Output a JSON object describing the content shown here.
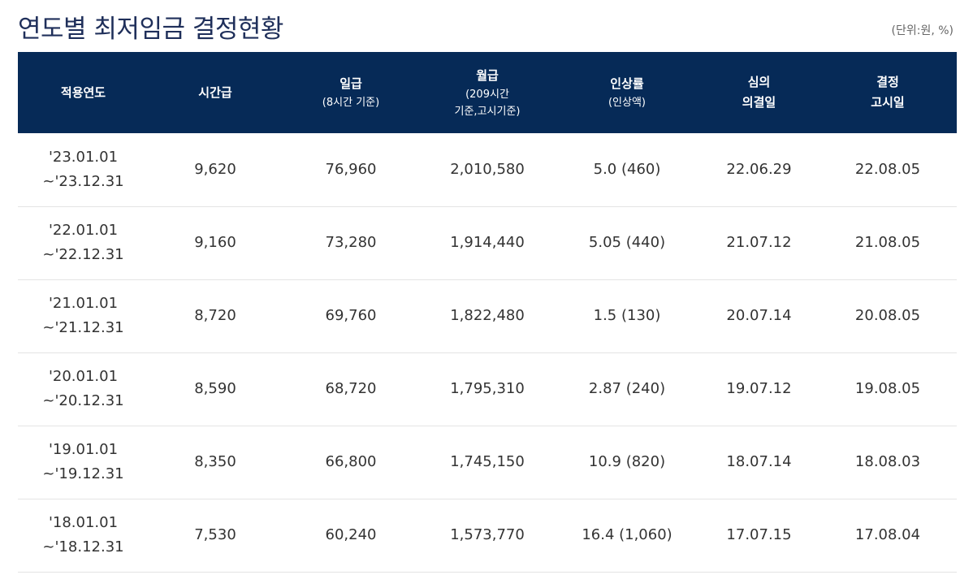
{
  "title": "연도별 최저임금 결정현황",
  "unit_note": "(단위:원, %)",
  "columns": [
    {
      "main": "적용연도",
      "sub": ""
    },
    {
      "main": "시간급",
      "sub": ""
    },
    {
      "main": "일급",
      "sub": "(8시간 기준)"
    },
    {
      "main": "월급",
      "sub": "(209시간",
      "sub2": "기준,고시기준)"
    },
    {
      "main": "인상률",
      "sub": "(인상액)"
    },
    {
      "main": "심의",
      "main2": "의결일"
    },
    {
      "main": "결정",
      "main2": "고시일"
    }
  ],
  "rows": [
    {
      "period_start": "'23.01.01",
      "period_end": "~'23.12.31",
      "hourly": "9,620",
      "daily": "76,960",
      "monthly": "2,010,580",
      "increase": "5.0 (460)",
      "deliberation": "22.06.29",
      "notice": "22.08.05"
    },
    {
      "period_start": "'22.01.01",
      "period_end": "~'22.12.31",
      "hourly": "9,160",
      "daily": "73,280",
      "monthly": "1,914,440",
      "increase": "5.05 (440)",
      "deliberation": "21.07.12",
      "notice": "21.08.05"
    },
    {
      "period_start": "'21.01.01",
      "period_end": "~'21.12.31",
      "hourly": "8,720",
      "daily": "69,760",
      "monthly": "1,822,480",
      "increase": "1.5 (130)",
      "deliberation": "20.07.14",
      "notice": "20.08.05"
    },
    {
      "period_start": "'20.01.01",
      "period_end": "~'20.12.31",
      "hourly": "8,590",
      "daily": "68,720",
      "monthly": "1,795,310",
      "increase": "2.87 (240)",
      "deliberation": "19.07.12",
      "notice": "19.08.05"
    },
    {
      "period_start": "'19.01.01",
      "period_end": "~'19.12.31",
      "hourly": "8,350",
      "daily": "66,800",
      "monthly": "1,745,150",
      "increase": "10.9 (820)",
      "deliberation": "18.07.14",
      "notice": "18.08.03"
    },
    {
      "period_start": "'18.01.01",
      "period_end": "~'18.12.31",
      "hourly": "7,530",
      "daily": "60,240",
      "monthly": "1,573,770",
      "increase": "16.4 (1,060)",
      "deliberation": "17.07.15",
      "notice": "17.08.04"
    }
  ],
  "colors": {
    "header_bg": "#062a57",
    "title": "#1f2f5a",
    "row_divider": "#e4e4e4"
  }
}
